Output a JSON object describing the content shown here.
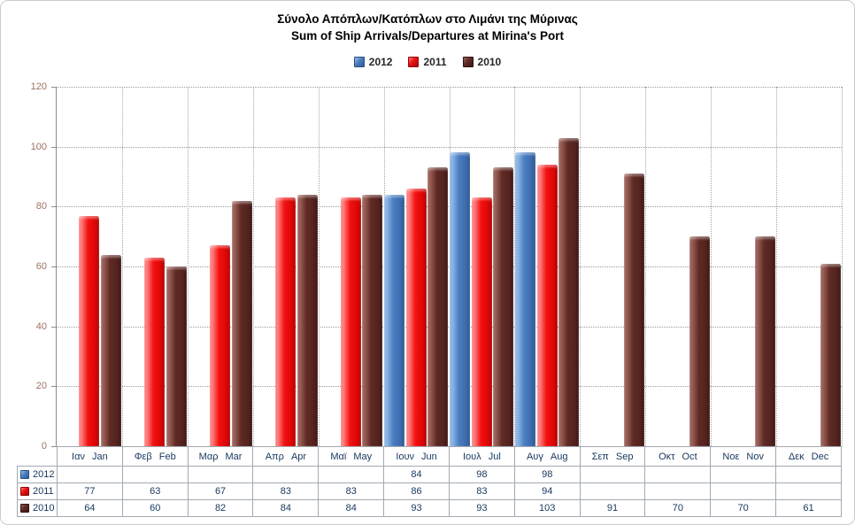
{
  "title": {
    "line1": "Σύνολο Απόπλων/Κατόπλων στο Λιμάνι της Μύρινας",
    "line2": "Sum of Ship Arrivals/Departures at Mirina's Port"
  },
  "colors": {
    "series_2012": "#4177B6",
    "series_2011": "#EE0A0A",
    "series_2010": "#5E2A25",
    "y_axis_text": "#9b7264",
    "table_text": "#17375E",
    "grid": "#9b9b9b",
    "table_border": "#a3a9b3"
  },
  "chart_data": {
    "type": "bar",
    "title": "Σύνολο Απόπλων/Κατόπλων στο Λιμάνι της Μύρινας",
    "subtitle": "Sum of Ship Arrivals/Departures at Mirina's Port",
    "legend_position": "top",
    "grid": true,
    "data_table_shown": true,
    "categories": [
      "Ιαν Jan",
      "Φεβ Feb",
      "Μαρ Mar",
      "Απρ Apr",
      "Μαϊ May",
      "Ιουν Jun",
      "Ιουλ Jul",
      "Αυγ Aug",
      "Σεπ Sep",
      "Οκτ Oct",
      "Νοε Nov",
      "Δεκ Dec"
    ],
    "categories_en": [
      "jan",
      "feb",
      "mar",
      "apr",
      "may",
      "jun",
      "jul",
      "aug",
      "sep",
      "oct",
      "nov",
      "dec"
    ],
    "series": [
      {
        "name": "2012",
        "color": "#4177B6",
        "values": [
          null,
          null,
          null,
          null,
          null,
          84,
          98,
          98,
          null,
          null,
          null,
          null
        ]
      },
      {
        "name": "2011",
        "color": "#EE0A0A",
        "values": [
          77,
          63,
          67,
          83,
          83,
          86,
          83,
          94,
          null,
          null,
          null,
          null
        ]
      },
      {
        "name": "2010",
        "color": "#5E2A25",
        "values": [
          64,
          60,
          82,
          84,
          84,
          93,
          93,
          103,
          91,
          70,
          70,
          61
        ]
      }
    ],
    "ylim": [
      0,
      120
    ],
    "yticks": [
      0,
      20,
      40,
      60,
      80,
      100,
      120
    ],
    "xlabel": "",
    "ylabel": ""
  }
}
